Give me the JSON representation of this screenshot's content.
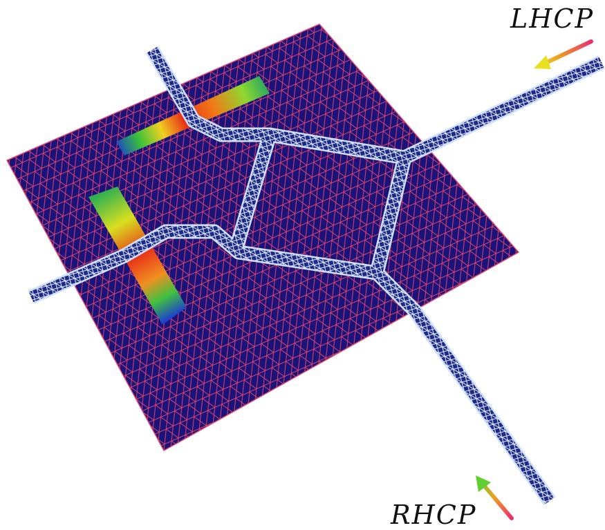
{
  "labels": {
    "top_right": "LHCP",
    "bottom_right": "RHCP"
  }
}
